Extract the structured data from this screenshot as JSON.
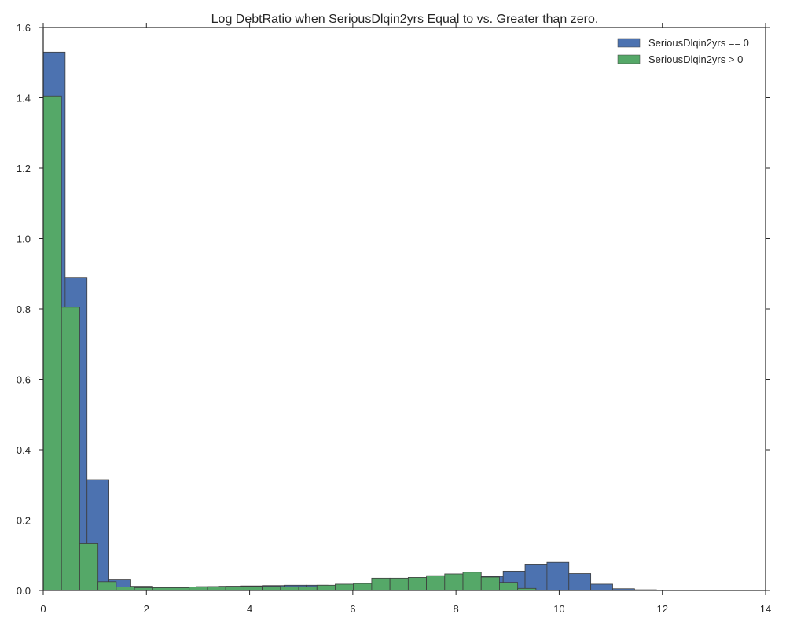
{
  "chart_data": {
    "type": "bar",
    "title": "Log DebtRatio when SeriousDlqin2yrs Equal to vs. Greater than zero.",
    "xlabel": "",
    "ylabel": "",
    "xlim": [
      0,
      14
    ],
    "ylim": [
      0,
      1.6
    ],
    "x_ticks": [
      "0",
      "2",
      "4",
      "6",
      "8",
      "10",
      "12",
      "14"
    ],
    "y_ticks": [
      "0.0",
      "0.2",
      "0.4",
      "0.6",
      "0.8",
      "1.0",
      "1.2",
      "1.4",
      "1.6"
    ],
    "grid": false,
    "legend_position": "top-right",
    "series": [
      {
        "name": "SeriousDlqin2yrs == 0",
        "color": "#4c72b0",
        "bin_start": 0,
        "bin_width": 0.4245,
        "values": [
          1.53,
          0.89,
          0.315,
          0.03,
          0.012,
          0.01,
          0.01,
          0.011,
          0.012,
          0.013,
          0.014,
          0.015,
          0.015,
          0.014,
          0.013,
          0.014,
          0.016,
          0.018,
          0.022,
          0.03,
          0.04,
          0.055,
          0.075,
          0.08,
          0.048,
          0.018,
          0.005,
          0.002
        ]
      },
      {
        "name": "SeriousDlqin2yrs > 0",
        "color": "#55a868",
        "bin_start": 0,
        "bin_width": 0.3537,
        "values": [
          1.405,
          0.805,
          0.133,
          0.025,
          0.01,
          0.008,
          0.008,
          0.008,
          0.01,
          0.011,
          0.012,
          0.012,
          0.012,
          0.011,
          0.011,
          0.015,
          0.018,
          0.02,
          0.035,
          0.035,
          0.037,
          0.042,
          0.047,
          0.052,
          0.038,
          0.023,
          0.006,
          0.001
        ]
      }
    ]
  }
}
